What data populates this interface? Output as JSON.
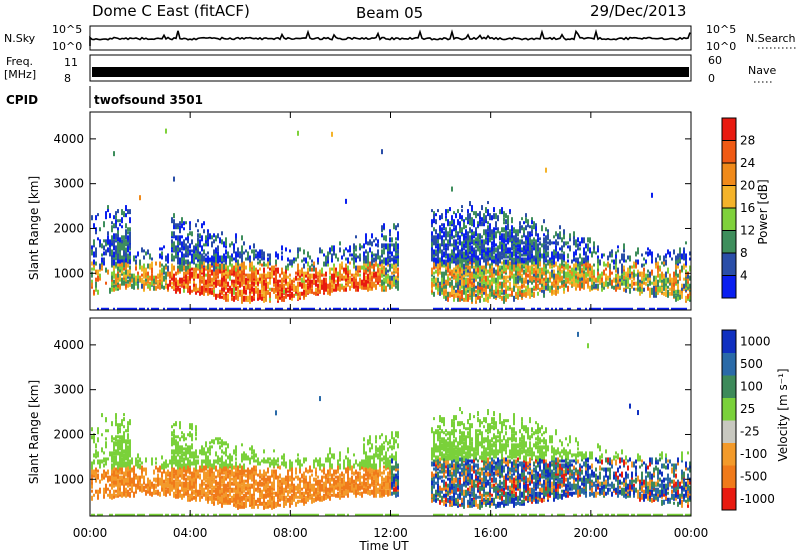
{
  "header": {
    "title": "Dome C East (fitACF)",
    "beam": "Beam 05",
    "date": "29/Dec/2013"
  },
  "panels": {
    "nsky_label": "N.Sky",
    "nsky_tick_top": "10^5",
    "nsky_tick_bottom": "10^0",
    "nsearch_label": "N.Search",
    "nsearch_tick_top": "10^5",
    "nsearch_tick_bottom": "10^0",
    "freq_label": "Freq.",
    "freq_unit": "[MHz]",
    "freq_tick_top": "11",
    "freq_tick_bottom": "8",
    "nave_label": "Nave",
    "nave_tick_top": "60",
    "nave_tick_bottom": "0",
    "cpid_label": "CPID",
    "cpid_value": "twofsound 3501"
  },
  "chart_data": [
    {
      "type": "heatmap",
      "parameter": "Power",
      "ylabel": "Slant Range [km]",
      "y_ticks": [
        "1000",
        "2000",
        "3000",
        "4000"
      ],
      "ylim": [
        180,
        4600
      ],
      "xlim": [
        0,
        24
      ],
      "colorbar_label": "Power [dB]",
      "colorbar_ticks": [
        "4",
        "8",
        "12",
        "16",
        "20",
        "24",
        "28"
      ],
      "colorbar_range": [
        0,
        32
      ],
      "colorbar_colors": [
        "#0a1ff0",
        "#2a4ea8",
        "#3e8e5c",
        "#7fd13b",
        "#f4b32a",
        "#f08a1a",
        "#f05a14",
        "#e81a10"
      ]
    },
    {
      "type": "heatmap",
      "parameter": "Velocity",
      "ylabel": "Slant Range [km]",
      "y_ticks": [
        "1000",
        "2000",
        "3000",
        "4000"
      ],
      "ylim": [
        180,
        4600
      ],
      "xlim": [
        0,
        24
      ],
      "colorbar_label": "Velocity [m s⁻¹]",
      "colorbar_ticks": [
        "1000",
        "500",
        "100",
        "25",
        "-25",
        "-100",
        "-500",
        "-1000"
      ],
      "colorbar_colors": [
        "#1030c0",
        "#2a6aa8",
        "#3d8a5a",
        "#7ad13a",
        "#c8c8c0",
        "#f39a2a",
        "#f07a1a",
        "#e81a10"
      ]
    }
  ],
  "x_axis": {
    "xlabel": "Time UT",
    "ticks": [
      "00:00",
      "04:00",
      "08:00",
      "12:00",
      "16:00",
      "20:00",
      "00:00"
    ]
  }
}
